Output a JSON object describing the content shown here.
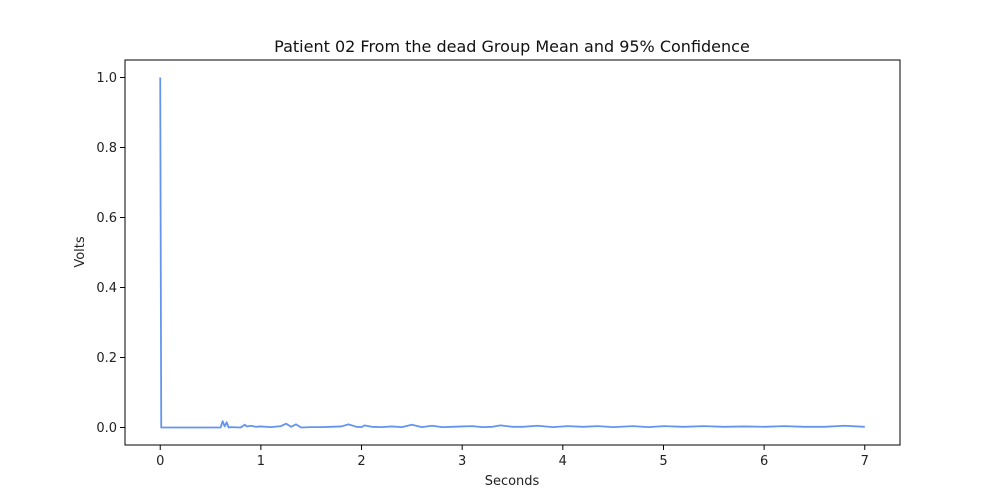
{
  "chart_data": {
    "type": "line",
    "title": "Patient 02 From the dead Group Mean and 95% Confidence",
    "xlabel": "Seconds",
    "ylabel": "Volts",
    "xlim": [
      -0.35,
      7.35
    ],
    "ylim": [
      -0.05,
      1.05
    ],
    "xticks": [
      0,
      1,
      2,
      3,
      4,
      5,
      6,
      7
    ],
    "xtick_labels": [
      "0",
      "1",
      "2",
      "3",
      "4",
      "5",
      "6",
      "7"
    ],
    "yticks": [
      0.0,
      0.2,
      0.4,
      0.6,
      0.8,
      1.0
    ],
    "ytick_labels": [
      "0.0",
      "0.2",
      "0.4",
      "0.6",
      "0.8",
      "1.0"
    ],
    "grid": false,
    "line_color": "#6495ed",
    "series": [
      {
        "x": [
          0,
          0.005,
          0.01,
          0.6,
          0.62,
          0.64,
          0.66,
          0.68,
          0.7,
          0.8,
          0.84,
          0.86,
          0.9,
          0.95,
          1.0,
          1.1,
          1.2,
          1.25,
          1.3,
          1.35,
          1.4,
          1.5,
          1.6,
          1.7,
          1.8,
          1.87,
          1.95,
          2.0,
          2.03,
          2.1,
          2.2,
          2.3,
          2.4,
          2.5,
          2.6,
          2.7,
          2.8,
          2.9,
          3.0,
          3.1,
          3.2,
          3.3,
          3.38,
          3.5,
          3.6,
          3.75,
          3.9,
          4.05,
          4.2,
          4.35,
          4.5,
          4.7,
          4.85,
          5.0,
          5.2,
          5.4,
          5.6,
          5.8,
          6.0,
          6.2,
          6.4,
          6.6,
          6.8,
          7.0
        ],
        "y": [
          1.0,
          0.5,
          0.0,
          0.0,
          0.018,
          0.003,
          0.015,
          0.0,
          0.001,
          0.0,
          0.008,
          0.003,
          0.005,
          0.002,
          0.003,
          0.001,
          0.004,
          0.011,
          0.002,
          0.009,
          0.0,
          0.001,
          0.001,
          0.002,
          0.003,
          0.009,
          0.002,
          0.001,
          0.006,
          0.002,
          0.001,
          0.003,
          0.001,
          0.008,
          0.001,
          0.005,
          0.001,
          0.002,
          0.003,
          0.004,
          0.001,
          0.002,
          0.006,
          0.002,
          0.002,
          0.005,
          0.001,
          0.004,
          0.002,
          0.004,
          0.001,
          0.004,
          0.001,
          0.004,
          0.002,
          0.004,
          0.002,
          0.003,
          0.002,
          0.004,
          0.002,
          0.002,
          0.005,
          0.002
        ]
      }
    ]
  }
}
